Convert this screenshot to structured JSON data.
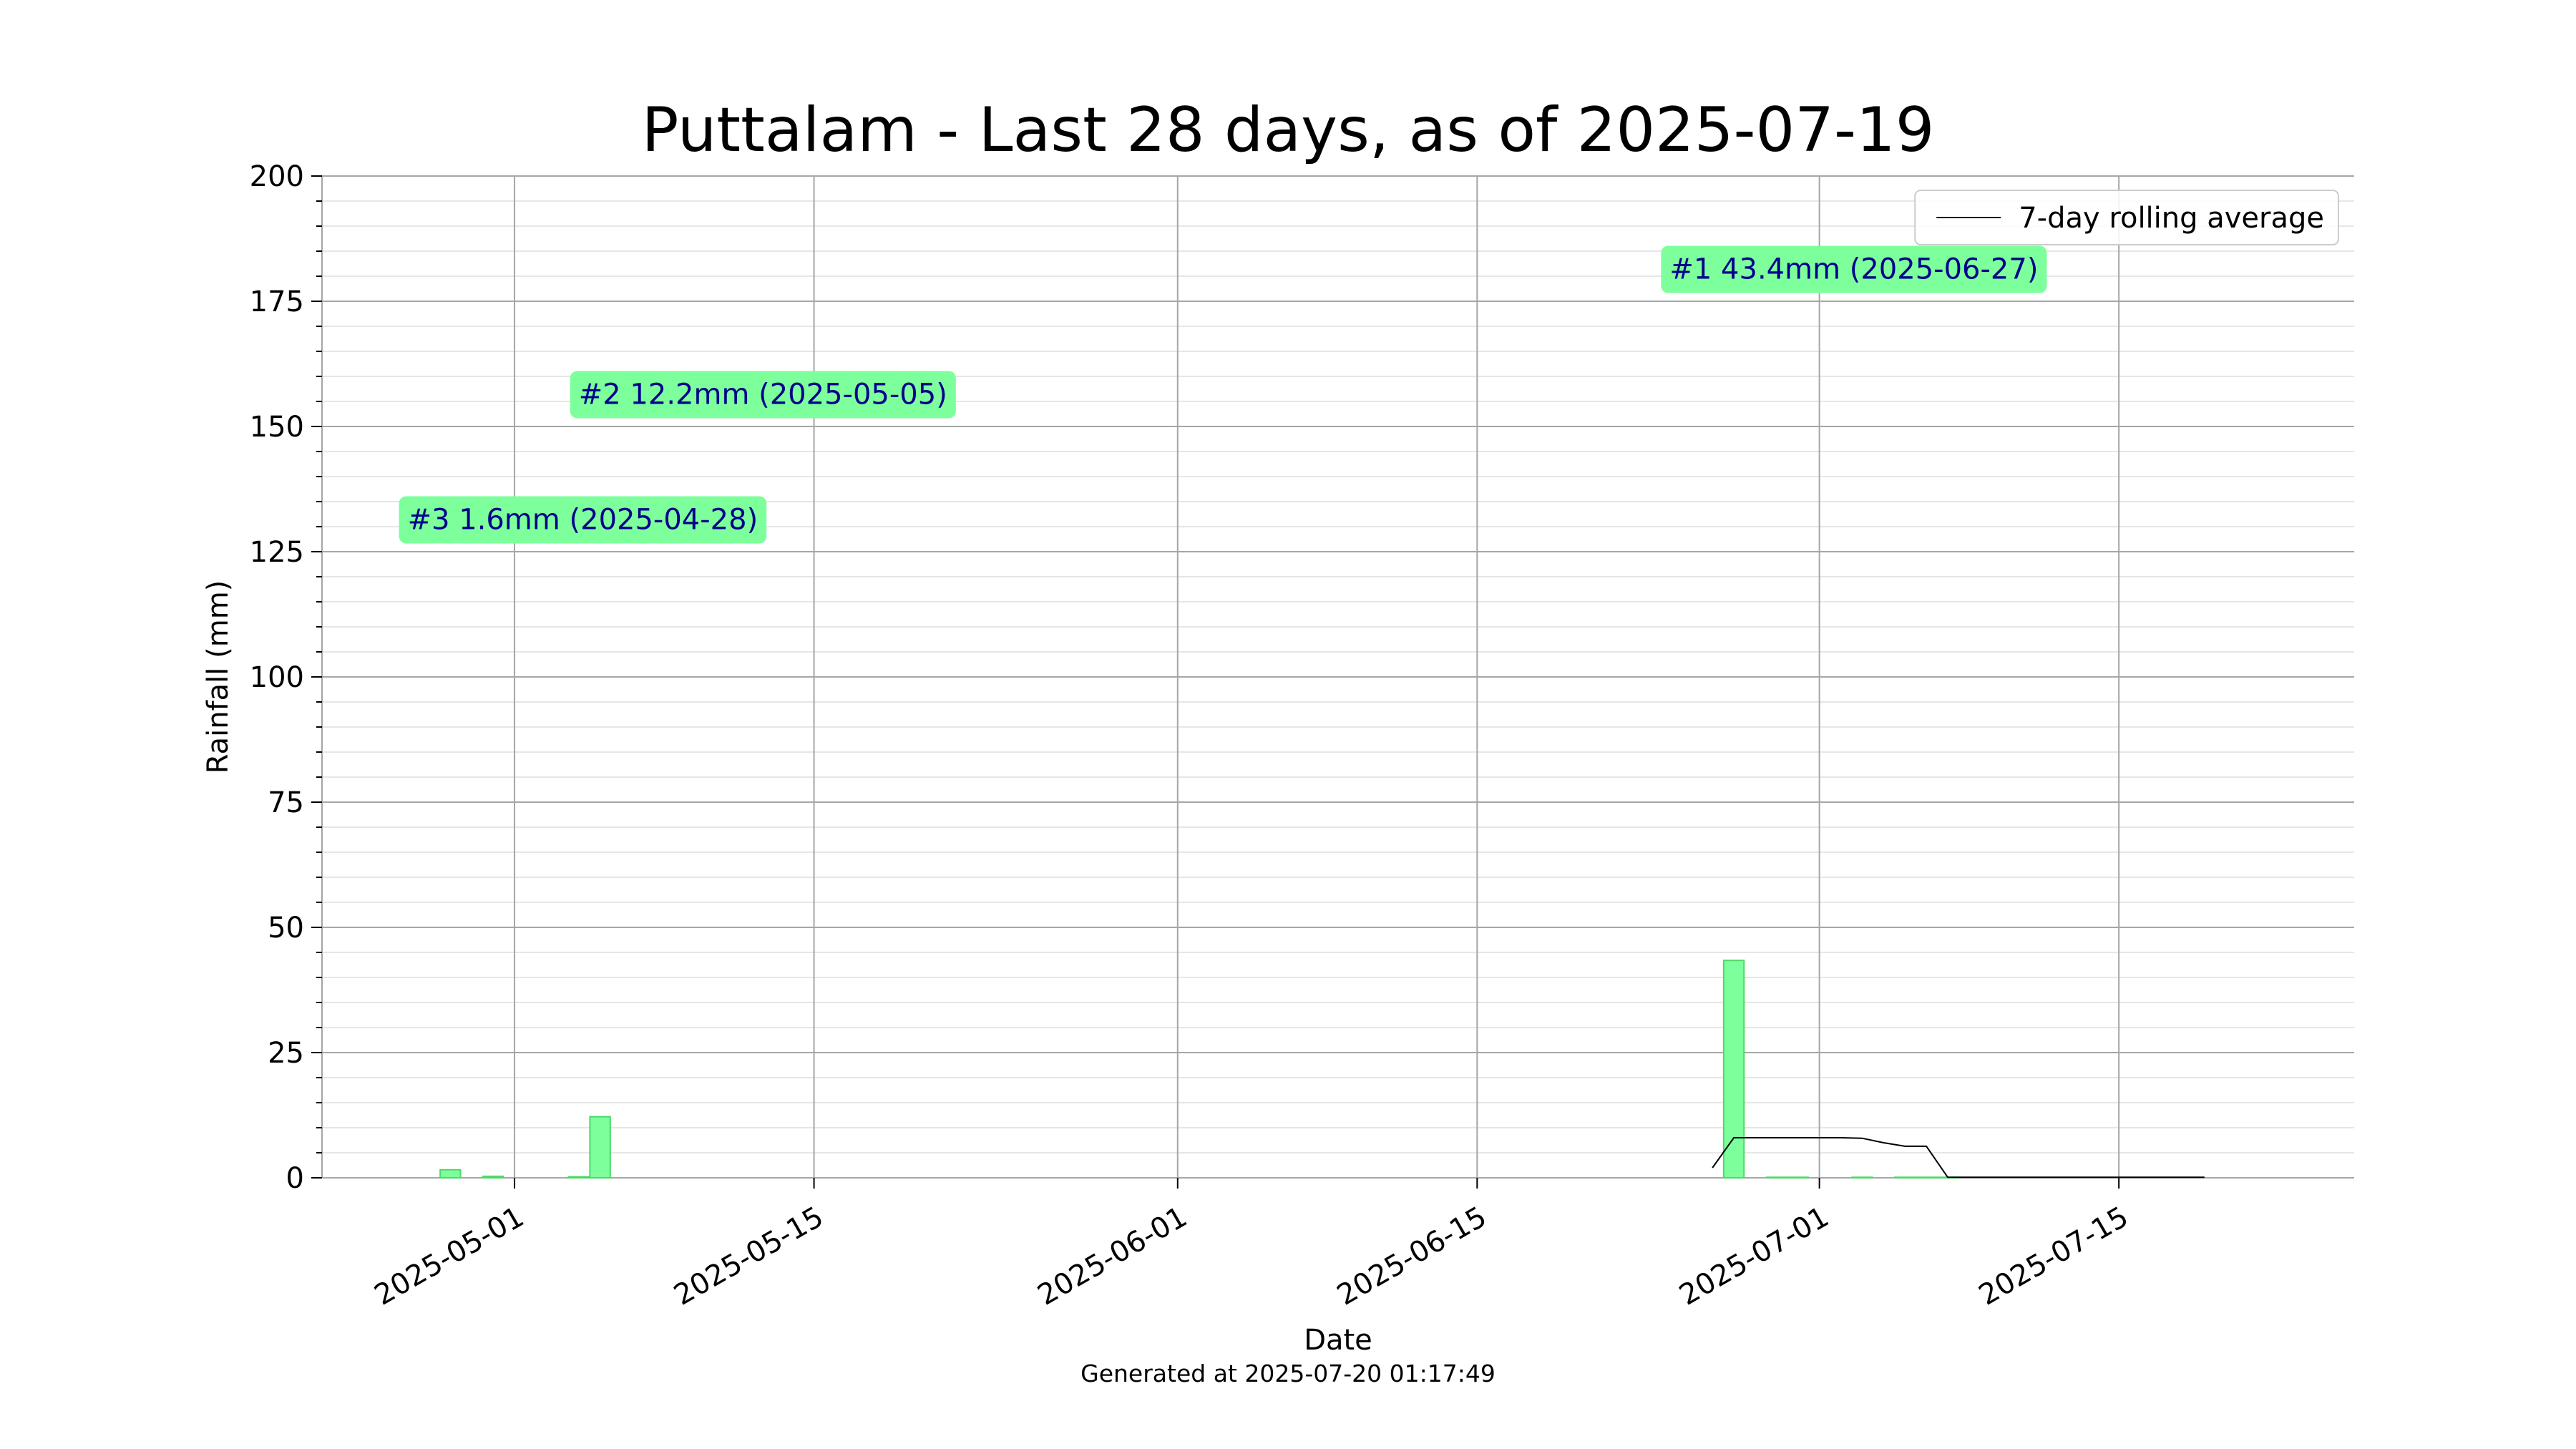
{
  "chart_data": {
    "type": "bar",
    "title": "Puttalam - Last 28 days, as of 2025-07-19",
    "xlabel": "Date",
    "ylabel": "Rainfall (mm)",
    "ylim": [
      0,
      200
    ],
    "xlim": [
      "2025-04-22",
      "2025-07-26"
    ],
    "yticks": [
      0,
      25,
      50,
      75,
      100,
      125,
      150,
      175,
      200
    ],
    "xticks": [
      "2025-05-01",
      "2025-05-15",
      "2025-06-01",
      "2025-06-15",
      "2025-07-01",
      "2025-07-15"
    ],
    "grid": true,
    "legend": {
      "position": "top-right",
      "entries": [
        "7-day rolling average"
      ]
    },
    "bar_color": "#7dff9c",
    "bar_edge_color": "#4cd866",
    "line_color": "#000000",
    "series": [
      {
        "type": "bar",
        "x": [
          "2025-04-27",
          "2025-04-28",
          "2025-04-29",
          "2025-04-30",
          "2025-05-01",
          "2025-05-02",
          "2025-05-03",
          "2025-05-04",
          "2025-05-05",
          "2025-06-27",
          "2025-06-28",
          "2025-06-29",
          "2025-06-30",
          "2025-07-01",
          "2025-07-02",
          "2025-07-03",
          "2025-07-04",
          "2025-07-05",
          "2025-07-06",
          "2025-07-07",
          "2025-07-08",
          "2025-07-09",
          "2025-07-10",
          "2025-07-11",
          "2025-07-12",
          "2025-07-13",
          "2025-07-14",
          "2025-07-15",
          "2025-07-16",
          "2025-07-17",
          "2025-07-18",
          "2025-07-19"
        ],
        "values": [
          0,
          1.6,
          0,
          0.3,
          0,
          0,
          0,
          0.2,
          12.2,
          43.4,
          0,
          0.1,
          0.1,
          0,
          0,
          0.1,
          0,
          0.1,
          0.1,
          0.1,
          0,
          0,
          0,
          0,
          0,
          0,
          0,
          0,
          0,
          0,
          0,
          0
        ]
      },
      {
        "type": "line",
        "name": "7-day rolling average",
        "x": [
          "2025-06-26",
          "2025-06-27",
          "2025-06-28",
          "2025-06-29",
          "2025-06-30",
          "2025-07-01",
          "2025-07-02",
          "2025-07-03",
          "2025-07-04",
          "2025-07-05",
          "2025-07-06",
          "2025-07-07",
          "2025-07-08",
          "2025-07-09",
          "2025-07-10",
          "2025-07-11",
          "2025-07-12",
          "2025-07-13",
          "2025-07-14",
          "2025-07-15",
          "2025-07-16",
          "2025-07-17",
          "2025-07-18",
          "2025-07-19"
        ],
        "values": [
          2.0,
          8.0,
          8.0,
          8.0,
          8.0,
          8.0,
          8.0,
          7.9,
          7.0,
          6.3,
          6.3,
          0.1,
          0.1,
          0.1,
          0.1,
          0.1,
          0.1,
          0.1,
          0.1,
          0.1,
          0.1,
          0.1,
          0.1,
          0.1
        ]
      }
    ],
    "annotations": [
      {
        "text": "#1 43.4mm (2025-06-27)",
        "x": "2025-06-24",
        "y": 181.5
      },
      {
        "text": "#2 12.2mm (2025-05-05)",
        "x": "2025-05-04",
        "y": 156.5
      },
      {
        "text": "#3 1.6mm (2025-04-28)",
        "x": "2025-04-26",
        "y": 131.5
      }
    ]
  },
  "footer": "Generated at 2025-07-20 01:17:49"
}
